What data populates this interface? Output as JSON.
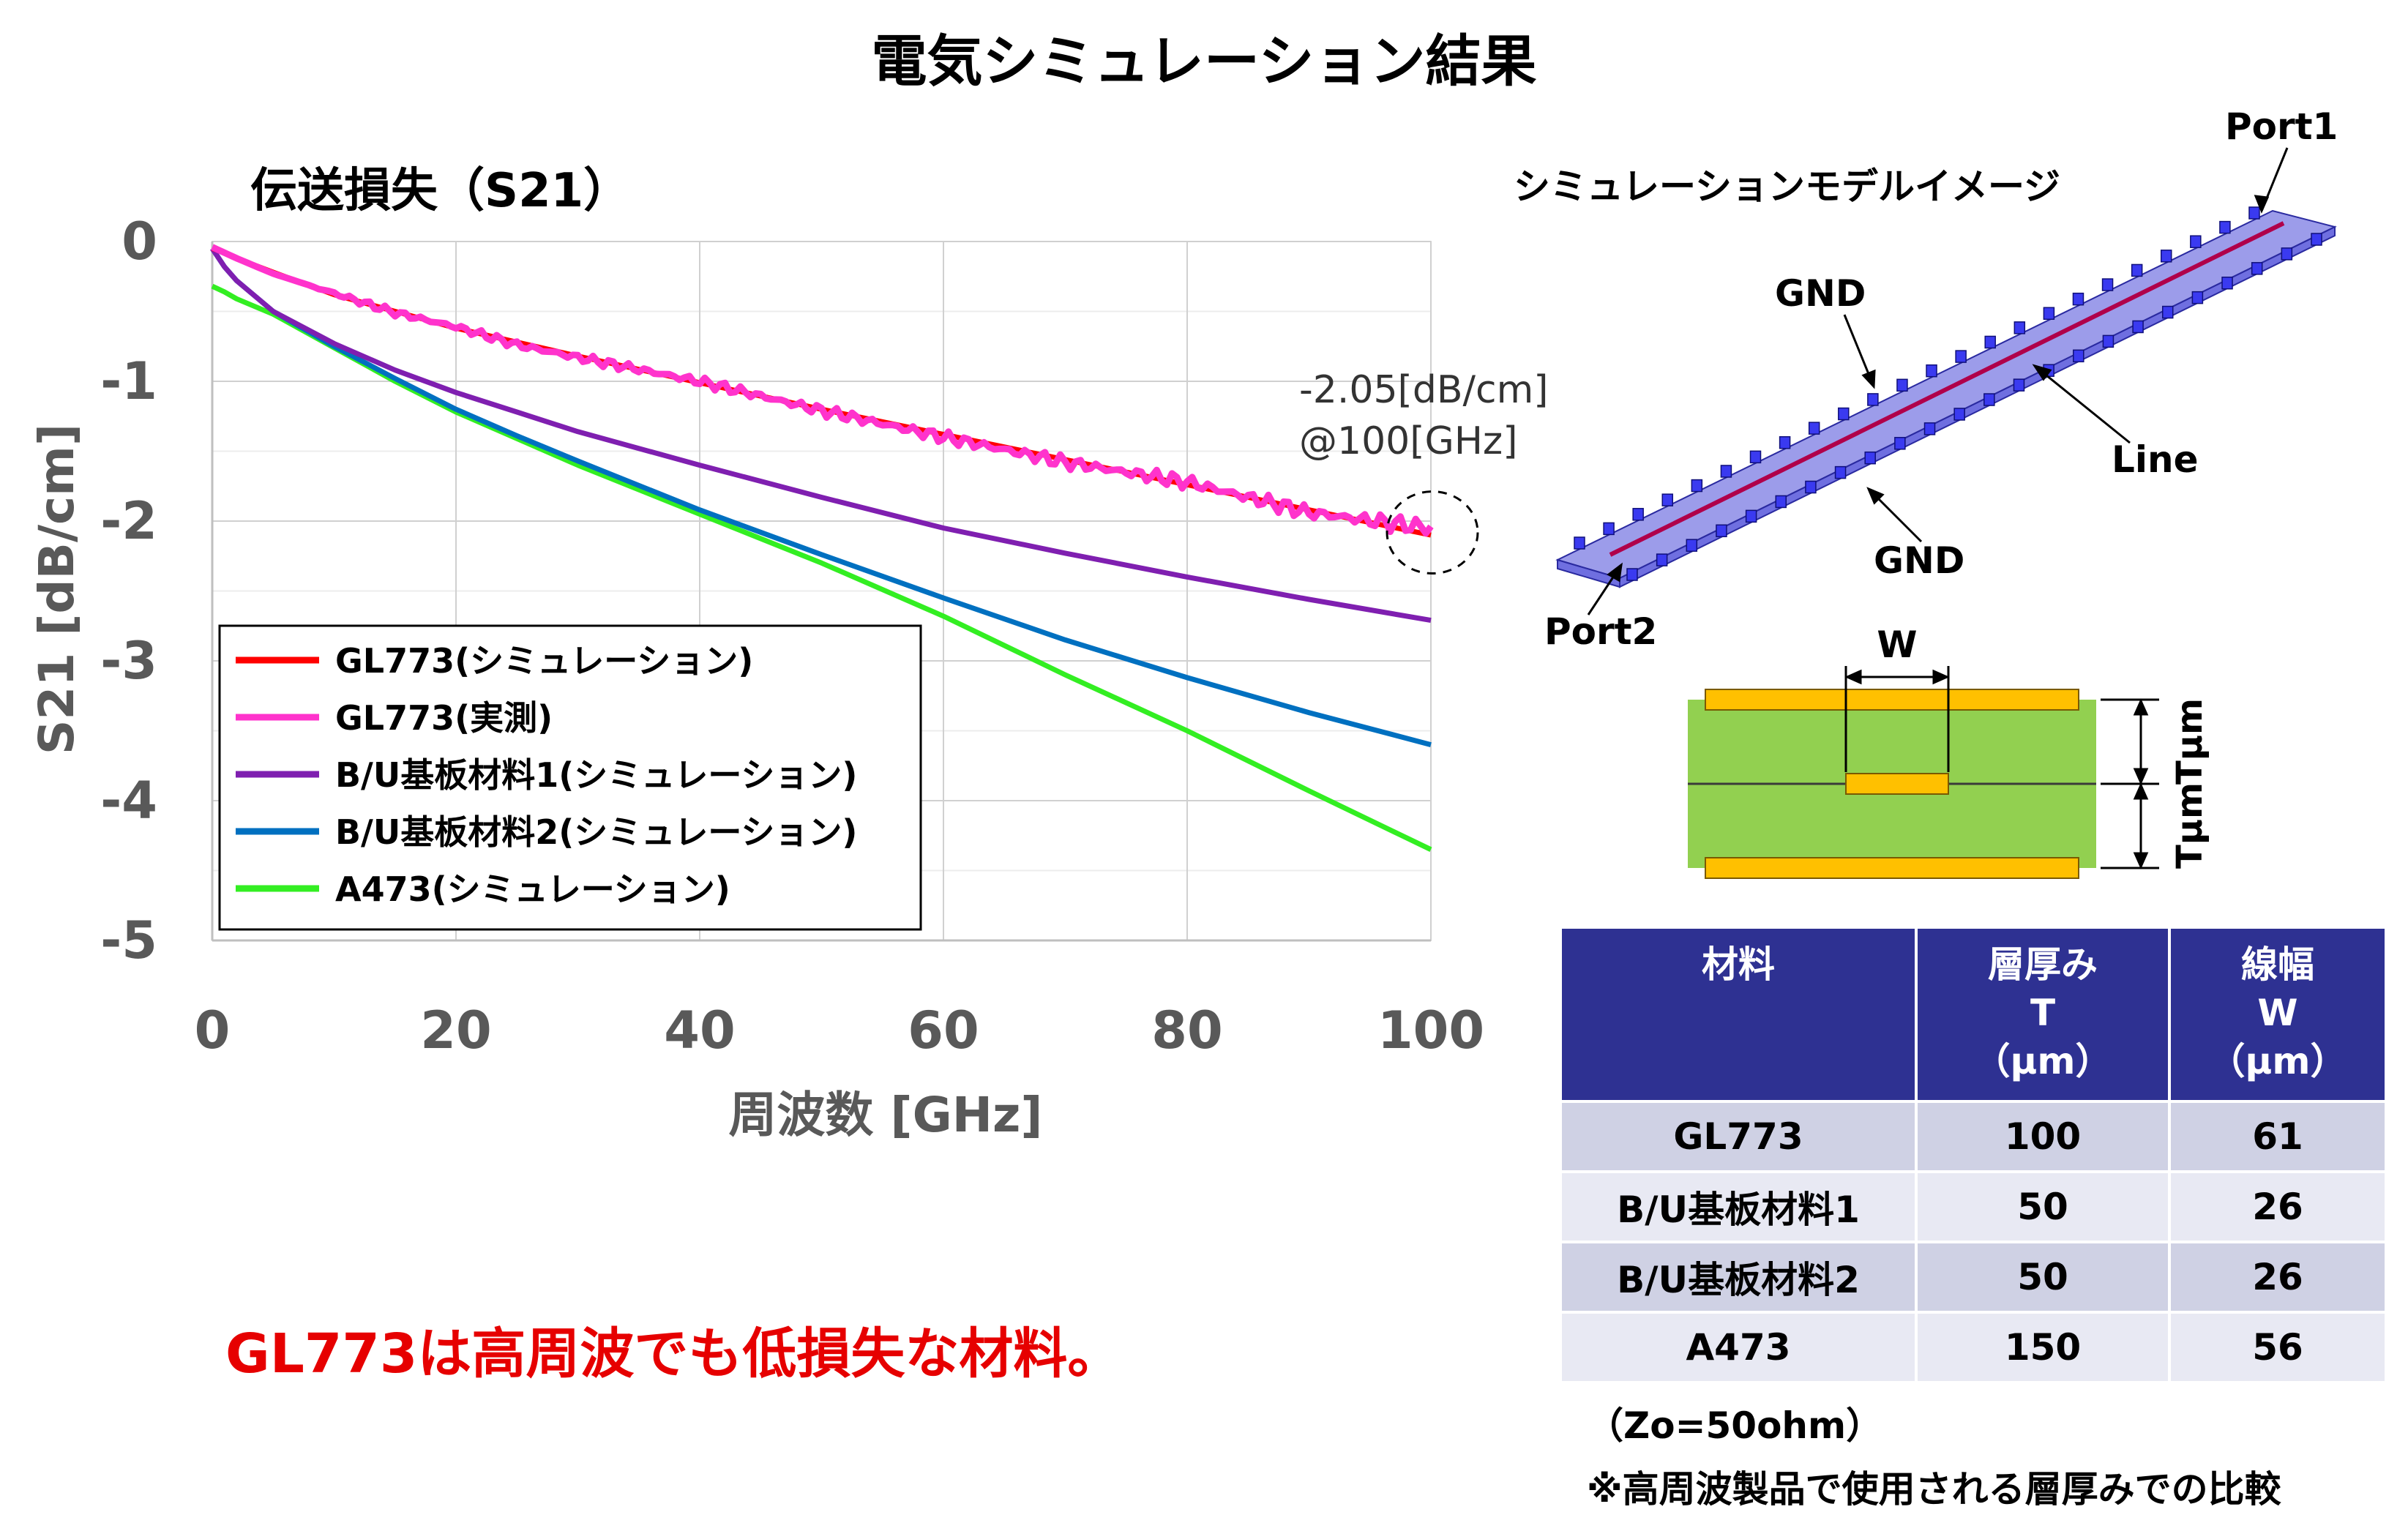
{
  "page_title": "電気シミュレーション結果",
  "conclusion": "GL773は高周波でも低損失な材料。",
  "chart_data": {
    "type": "line",
    "title": "伝送損失（S21）",
    "xlabel": "周波数  [GHz]",
    "ylabel": "S21 [dB/cm]",
    "xlim": [
      0,
      100
    ],
    "ylim": [
      -5,
      0
    ],
    "x_ticks": [
      "0",
      "20",
      "40",
      "60",
      "80",
      "100"
    ],
    "y_ticks": [
      "0",
      "-1",
      "-2",
      "-3",
      "-4",
      "-5"
    ],
    "grid": true,
    "legend_position": "bottom-left",
    "x": [
      0,
      1,
      2,
      5,
      10,
      15,
      20,
      25,
      30,
      40,
      50,
      60,
      70,
      80,
      90,
      100
    ],
    "series": [
      {
        "name": "GL773(シミュレーション)",
        "color": "#ff0000",
        "values": [
          -0.05,
          -0.08,
          -0.12,
          -0.22,
          -0.38,
          -0.5,
          -0.62,
          -0.72,
          -0.82,
          -1.01,
          -1.2,
          -1.38,
          -1.56,
          -1.74,
          -1.92,
          -2.1
        ]
      },
      {
        "name": "GL773(実測)",
        "color": "#ff33cc",
        "values": [
          -0.04,
          -0.08,
          -0.12,
          -0.23,
          -0.37,
          -0.51,
          -0.61,
          -0.74,
          -0.83,
          -1.0,
          -1.21,
          -1.4,
          -1.58,
          -1.72,
          -1.94,
          -2.05
        ]
      },
      {
        "name": "B/U基板材料1(シミュレーション)",
        "color": "#7f1fb0",
        "values": [
          -0.05,
          -0.18,
          -0.28,
          -0.5,
          -0.73,
          -0.92,
          -1.08,
          -1.22,
          -1.36,
          -1.6,
          -1.83,
          -2.05,
          -2.23,
          -2.4,
          -2.56,
          -2.71
        ]
      },
      {
        "name": "B/U基板材料2(シミュレーション)",
        "color": "#0070c0",
        "values": [
          -0.05,
          -0.18,
          -0.28,
          -0.5,
          -0.75,
          -0.98,
          -1.2,
          -1.39,
          -1.57,
          -1.92,
          -2.24,
          -2.55,
          -2.85,
          -3.12,
          -3.37,
          -3.6
        ]
      },
      {
        "name": "A473(シミュレーション)",
        "color": "#33ee22",
        "values": [
          -0.32,
          -0.36,
          -0.41,
          -0.52,
          -0.76,
          -1.0,
          -1.22,
          -1.41,
          -1.6,
          -1.95,
          -2.3,
          -2.68,
          -3.1,
          -3.5,
          -3.93,
          -4.35
        ]
      }
    ],
    "annotation": {
      "lines": [
        "-2.05[dB/cm]",
        "@100[GHz]"
      ],
      "x": 100,
      "y": -2.05
    }
  },
  "model": {
    "title": "シミュレーションモデルイメージ",
    "labels": {
      "port1": "Port1",
      "port2": "Port2",
      "gnd_top": "GND",
      "gnd_bottom": "GND",
      "line": "Line"
    },
    "colors": {
      "substrate": "#4b4bd8",
      "line": "#b0004a"
    }
  },
  "cross_section": {
    "w_label": "W",
    "t_label_top": "Tμm",
    "t_label_bottom": "Tμm",
    "colors": {
      "dielectric": "#92d050",
      "copper": "#ffc000"
    }
  },
  "spec_table": {
    "headers": [
      [
        "材料"
      ],
      [
        "層厚み",
        "T",
        "（μm）"
      ],
      [
        "線幅",
        "W",
        "（μm）"
      ]
    ],
    "rows": [
      [
        "GL773",
        "100",
        "61"
      ],
      [
        "B/U基板材料1",
        "50",
        "26"
      ],
      [
        "B/U基板材料2",
        "50",
        "26"
      ],
      [
        "A473",
        "150",
        "56"
      ]
    ],
    "header_color": "#2e3192"
  },
  "notes": [
    "（Zo=50ohm）",
    "※高周波製品で使用される層厚みでの比較"
  ]
}
